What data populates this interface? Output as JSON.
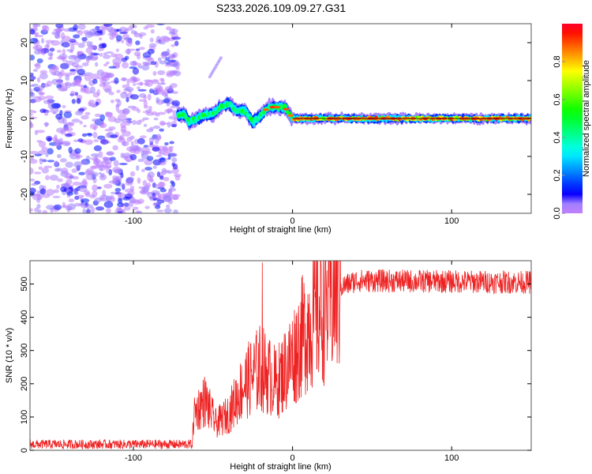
{
  "chart_data": [
    {
      "type": "heatmap",
      "title": "S233.2026.109.09.27.G31",
      "xlabel": "Height of straight line (km)",
      "ylabel": "Frequency (Hz)",
      "xlim": [
        -165,
        150
      ],
      "ylim": [
        -25,
        25
      ],
      "xticks": [
        -100,
        0,
        100
      ],
      "yticks": [
        -20,
        -10,
        0,
        10,
        20
      ],
      "noise_region_x": [
        -165,
        -72
      ],
      "ridge": {
        "x": [
          -72,
          -68,
          -65,
          -60,
          -55,
          -50,
          -45,
          -40,
          -35,
          -30,
          -28,
          -25,
          -22,
          -20,
          -15,
          -10,
          -5,
          0,
          20,
          60,
          100,
          150
        ],
        "y": [
          1,
          1,
          -1,
          0,
          1,
          1,
          3,
          4,
          2,
          2,
          1,
          -1,
          0,
          1,
          3,
          3,
          3,
          0,
          0,
          0,
          0,
          0
        ]
      },
      "streak": {
        "x": [
          -52,
          -45
        ],
        "y": [
          11,
          16
        ]
      },
      "colorbar": {
        "label": "Normalized spectral amplitude",
        "range": [
          0,
          1
        ],
        "ticks": [
          "0.0",
          "0.2",
          "0.4",
          "0.6",
          "0.8"
        ]
      }
    },
    {
      "type": "line",
      "xlabel": "Height of straight line (km)",
      "ylabel": "SNR (10 * v/v)",
      "xlim": [
        -165,
        150
      ],
      "ylim": [
        0,
        570
      ],
      "xticks": [
        -100,
        0,
        100
      ],
      "yticks": [
        0,
        100,
        200,
        300,
        400,
        500
      ],
      "color": "#ee2222",
      "envelope": {
        "x": [
          -165,
          -63,
          -62,
          -55,
          -48,
          -40,
          -35,
          -30,
          -20,
          -10,
          0,
          10,
          20,
          30,
          40,
          150
        ],
        "y": [
          18,
          18,
          110,
          150,
          80,
          110,
          160,
          200,
          250,
          200,
          280,
          380,
          430,
          490,
          510,
          505
        ]
      },
      "spike": {
        "x": -19,
        "y": 565
      }
    }
  ]
}
